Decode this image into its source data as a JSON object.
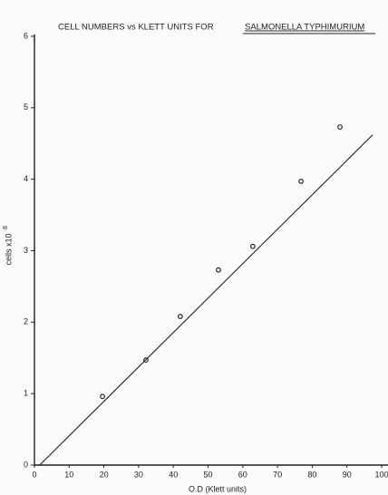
{
  "chart_data": {
    "type": "scatter",
    "title": "CELL NUMBERS vs KLETT UNITS FOR",
    "title_organism": "SALMONELLA TYPHIMURIUM",
    "x_label": "O.D (Klett units)",
    "y_label": "cells x10",
    "y_label_exponent": "8",
    "x": [
      19.6,
      32.1,
      42,
      53,
      62.9,
      76.8,
      88
    ],
    "values": [
      0.96,
      1.47,
      2.08,
      2.73,
      3.06,
      3.97,
      4.73
    ],
    "fit_line": {
      "x": [
        1.5,
        97.4
      ],
      "values": [
        0,
        4.62
      ]
    },
    "color": "#222222",
    "xlim": [
      0,
      100
    ],
    "xticks": [
      0,
      10,
      20,
      30,
      40,
      50,
      60,
      70,
      80,
      90,
      100
    ],
    "ylim": [
      0,
      6
    ],
    "yticks": [
      0,
      1,
      2,
      3,
      4,
      5,
      6
    ]
  }
}
